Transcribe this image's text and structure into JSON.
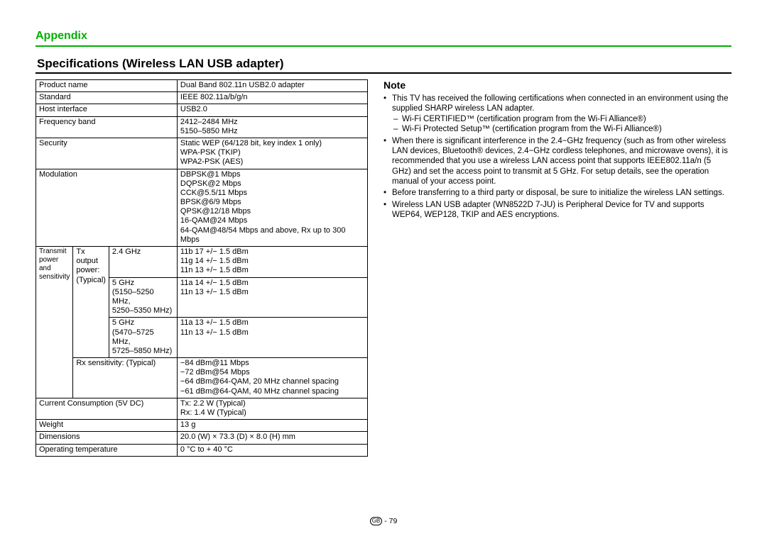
{
  "header": {
    "appendix": "Appendix",
    "section_title": "Specifications (Wireless LAN USB adapter)"
  },
  "spec_table": {
    "rows": [
      {
        "label": "Product name",
        "value": "Dual Band 802.11n USB2.0 adapter"
      },
      {
        "label": "Standard",
        "value": "IEEE 802.11a/b/g/n"
      },
      {
        "label": "Host interface",
        "value": "USB2.0"
      },
      {
        "label": "Frequency band",
        "value": "2412–2484 MHz\n5150–5850 MHz"
      },
      {
        "label": "Security",
        "value": "Static WEP (64/128 bit, key index 1 only)\nWPA-PSK (TKIP)\nWPA2-PSK (AES)"
      },
      {
        "label": "Modulation",
        "value": "DBPSK@1 Mbps\nDQPSK@2 Mbps\nCCK@5.5/11 Mbps\nBPSK@6/9 Mbps\nQPSK@12/18 Mbps\n16-QAM@24 Mbps\n64-QAM@48/54 Mbps and above, Rx up to 300 Mbps"
      }
    ],
    "transmit": {
      "group_label_l1": "Transmit",
      "group_label_l2": "power and",
      "group_label_l3": "sensitivity",
      "tx_label_l1": "Tx",
      "tx_label_l2": "output",
      "tx_label_l3": "power:",
      "tx_label_l4": "(Typical)",
      "bands": [
        {
          "band": "2.4 GHz",
          "value": "11b 17 +/− 1.5 dBm\n11g 14 +/− 1.5 dBm\n11n 13 +/− 1.5 dBm"
        },
        {
          "band": "5 GHz\n(5150–5250 MHz,\n5250–5350 MHz)",
          "value": "11a 14 +/− 1.5 dBm\n11n 13 +/− 1.5 dBm"
        },
        {
          "band": "5 GHz\n(5470–5725 MHz,\n5725–5850 MHz)",
          "value": "11a 13 +/− 1.5 dBm\n11n 13 +/− 1.5 dBm"
        }
      ],
      "rx_label": "Rx sensitivity: (Typical)",
      "rx_value": "−84 dBm@11 Mbps\n−72 dBm@54 Mbps\n−64 dBm@64-QAM, 20 MHz channel spacing\n−61 dBm@64-QAM, 40 MHz channel spacing"
    },
    "tail_rows": [
      {
        "label": "Current Consumption (5V DC)",
        "value": "Tx: 2.2 W (Typical)\nRx: 1.4 W (Typical)"
      },
      {
        "label": "Weight",
        "value": "13 g"
      },
      {
        "label": "Dimensions",
        "value": "20.0 (W) × 73.3 (D) × 8.0 (H) mm"
      },
      {
        "label": "Operating temperature",
        "value": "0 °C to + 40 °C"
      }
    ]
  },
  "notes": {
    "title": "Note",
    "items": [
      {
        "text": "This TV has received the following certifications when connected in an environment using the supplied SHARP wireless LAN adapter.",
        "subs": [
          "Wi-Fi CERTIFIED™ (certification program from the Wi-Fi Alliance®)",
          "Wi-Fi Protected Setup™ (certification program from the Wi-Fi Alliance®)"
        ]
      },
      {
        "text": "When there is significant interference in the 2.4−GHz frequency (such as from other wireless LAN devices, Bluetooth® devices, 2.4−GHz cordless telephones, and microwave ovens), it is recommended that you use a wireless LAN access point that supports IEEE802.11a/n (5 GHz) and set the access point to transmit at 5 GHz. For setup details, see the operation manual of your access point."
      },
      {
        "text": "Before transferring to a third party or disposal, be sure to initialize the wireless LAN settings."
      },
      {
        "text": "Wireless LAN USB adapter (WN8522D 7-JU) is Peripheral Device for TV and supports WEP64, WEP128, TKIP and AES encryptions."
      }
    ]
  },
  "footer": {
    "gb": "GB",
    "page": "- 79"
  }
}
